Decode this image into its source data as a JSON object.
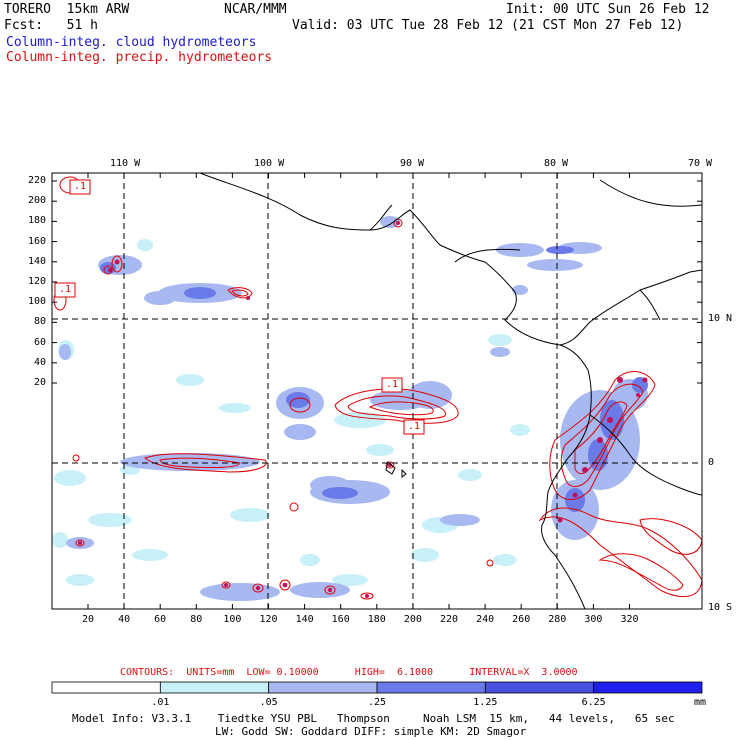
{
  "header": {
    "model": "TORERO  15km ARW",
    "org": "NCAR/MMM",
    "init": "Init: 00 UTC Sun 26 Feb 12",
    "fcst": "Fcst:   51 h",
    "valid": "Valid: 03 UTC Tue 28 Feb 12 (21 CST Mon 27 Feb 12)",
    "field1": "Column-integ. cloud hydrometeors",
    "field2": "Column-integ. precip. hydrometeors"
  },
  "colors": {
    "field1": "#1a1acc",
    "field2": "#dd1111",
    "cloud_light": "#c8f0f8",
    "cloud_mid": "#a8b8f0",
    "cloud_dark": "#6a7ae8",
    "cloud_darker": "#4a50e0",
    "cloud_darkest": "#2020ee",
    "contour": "#e00000"
  },
  "map": {
    "lon_labels": [
      "110 W",
      "100 W",
      "90 W",
      "80 W",
      "70 W"
    ],
    "lat_labels": [
      "10 N",
      "0",
      "10 S"
    ],
    "y_ticks": [
      "220",
      "200",
      "180",
      "160",
      "140",
      "120",
      "100",
      "80",
      "60",
      "40",
      "20"
    ],
    "x_ticks": [
      "20",
      "40",
      "60",
      "80",
      "100",
      "120",
      "140",
      "160",
      "180",
      "200",
      "220",
      "240",
      "260",
      "280",
      "300",
      "320"
    ],
    "contour_labels": [
      ".1",
      ".1",
      ".1",
      ".1"
    ]
  },
  "contours_info": {
    "text": "CONTOURS:  UNITS=mm  LOW= 0.10000      HIGH=  6.1000      INTERVAL=X  3.0000"
  },
  "colorbar": {
    "labels": [
      ".01",
      ".05",
      ".25",
      "1.25",
      "6.25"
    ],
    "unit": "mm",
    "colors": [
      "#ffffff",
      "#c8f0f8",
      "#a8b8f0",
      "#6a7ae8",
      "#4a50e0",
      "#2020ee"
    ]
  },
  "model_info": {
    "line1": "Model Info: V3.3.1    Tiedtke YSU PBL   Thompson     Noah LSM  15 km,   44 levels,   65 sec",
    "line2": "LW: Godd SW: Goddard DIFF: simple KM: 2D Smagor"
  }
}
